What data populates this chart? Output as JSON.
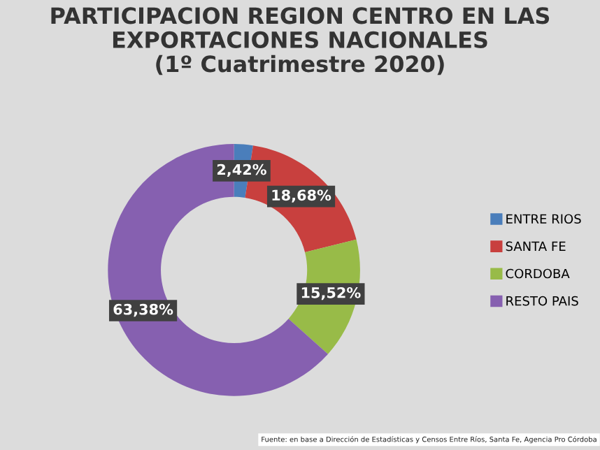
{
  "chart_data": {
    "type": "donut",
    "title": "PARTICIPACION REGION CENTRO EN LAS\nEXPORTACIONES NACIONALES\n(1º Cuatrimestre 2020)",
    "categories": [
      "ENTRE RIOS",
      "SANTA FE",
      "CORDOBA",
      "RESTO PAIS"
    ],
    "values": [
      2.42,
      18.68,
      15.52,
      63.38
    ],
    "value_labels": [
      "2,42%",
      "18,68%",
      "15,52%",
      "63,38%"
    ],
    "colors": [
      "#4a7ebb",
      "#c8403e",
      "#98bb48",
      "#8660b0"
    ],
    "legend": "right",
    "annotations": [
      "Fuente: en base a Dirección de Estadísticas y Censos Entre Ríos, Santa Fe, Agencia Pro Córdoba"
    ]
  }
}
